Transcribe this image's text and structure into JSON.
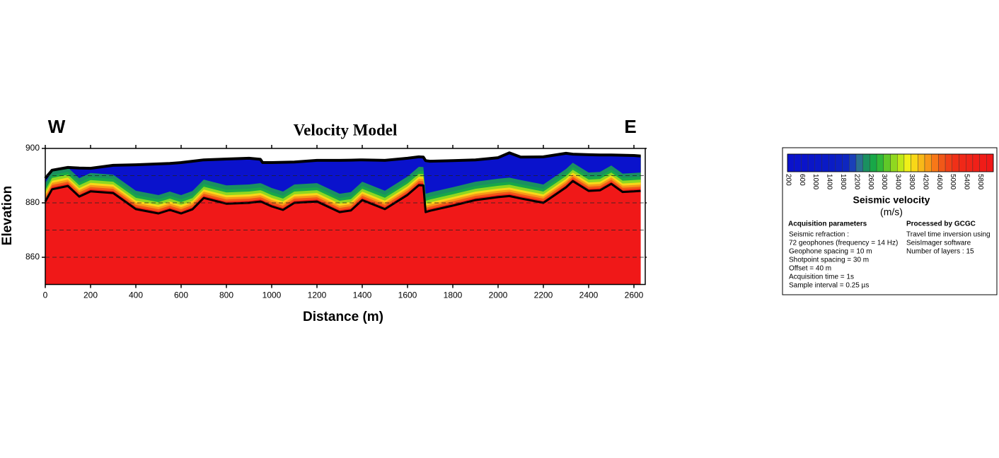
{
  "chart_data": {
    "type": "section",
    "title": "Velocity Model",
    "left_label": "W",
    "right_label": "E",
    "x_label": "Distance (m)",
    "y_label": "Elevation",
    "xlim": [
      0,
      2650
    ],
    "ylim": [
      850,
      900
    ],
    "xticks": [
      0,
      200,
      400,
      600,
      800,
      1000,
      1200,
      1400,
      1600,
      1800,
      2000,
      2200,
      2400,
      2600
    ],
    "yticks": [
      860,
      880,
      900
    ],
    "grid_lines": [
      860,
      870,
      880,
      890
    ],
    "x": [
      0,
      30,
      100,
      150,
      200,
      300,
      400,
      500,
      550,
      600,
      650,
      700,
      800,
      900,
      950,
      960,
      1000,
      1050,
      1100,
      1200,
      1300,
      1350,
      1400,
      1500,
      1600,
      1650,
      1670,
      1680,
      1700,
      1800,
      1900,
      2000,
      2050,
      2100,
      2200,
      2300,
      2330,
      2400,
      2450,
      2500,
      2550,
      2600,
      2630
    ],
    "series": [
      {
        "name": "surface",
        "color": "#000000",
        "values": [
          889,
          892,
          893,
          892.8,
          892.7,
          893.8,
          894,
          894.3,
          894.5,
          894.8,
          895.3,
          895.8,
          896.1,
          896.4,
          896,
          894.8,
          894.8,
          894.9,
          895,
          895.6,
          895.6,
          895.7,
          895.8,
          895.6,
          896.4,
          896.9,
          896.8,
          895.5,
          895.3,
          895.5,
          895.8,
          896.6,
          898.4,
          896.8,
          896.9,
          898.2,
          897.9,
          897.7,
          897.6,
          897.6,
          897.5,
          897.4,
          897.2
        ]
      },
      {
        "name": "refractor",
        "color": "#000000",
        "values": [
          880.5,
          885,
          886.2,
          882.3,
          884.2,
          883.6,
          877.7,
          876.1,
          877.4,
          876.1,
          877.6,
          881.8,
          879.7,
          880,
          880.5,
          880.2,
          878.7,
          877.4,
          880,
          880.5,
          876.6,
          877.2,
          881,
          877.7,
          882.9,
          886.5,
          886.4,
          876.6,
          877.1,
          879,
          881,
          882.1,
          882.5,
          881.6,
          880,
          885.7,
          888,
          884.4,
          884.6,
          887,
          884,
          884.2,
          884.4
        ]
      }
    ],
    "colorbar": {
      "label": "Seismic velocity",
      "unit": "(m/s)",
      "lim": [
        200,
        6200
      ],
      "ticks": [
        200,
        600,
        1000,
        1400,
        1800,
        2200,
        2600,
        3000,
        3400,
        3800,
        4200,
        4600,
        5000,
        5400,
        5800
      ],
      "colors": [
        "#0a12cc",
        "#0a14cc",
        "#0a14ca",
        "#0a16c8",
        "#0a18c8",
        "#0a1ac6",
        "#0a1cc6",
        "#0c20c4",
        "#0e26c0",
        "#1a40b8",
        "#2a7090",
        "#1a9060",
        "#18a848",
        "#30b838",
        "#60c828",
        "#90d820",
        "#c0e818",
        "#f0f018",
        "#f8d818",
        "#f8b818",
        "#f89818",
        "#f87818",
        "#f05818",
        "#f04018",
        "#f03018",
        "#f02818",
        "#f02418",
        "#f02018",
        "#f01c18",
        "#f01818"
      ]
    },
    "notes": {
      "acquisition_title": "Acquisition parameters",
      "acquisition": [
        "Seismic refraction :",
        "72 geophones (frequency = 14 Hz)",
        "Geophone spacing = 10 m",
        "Shotpoint spacing = 30 m",
        "Offset = 40 m",
        "Acquisition time = 1s",
        "Sample interval = 0.25 µs"
      ],
      "processing_title": "Processed by GCGC",
      "processing": [
        "Travel time inversion using",
        "SeisImager software",
        "Number of layers : 15"
      ]
    }
  }
}
